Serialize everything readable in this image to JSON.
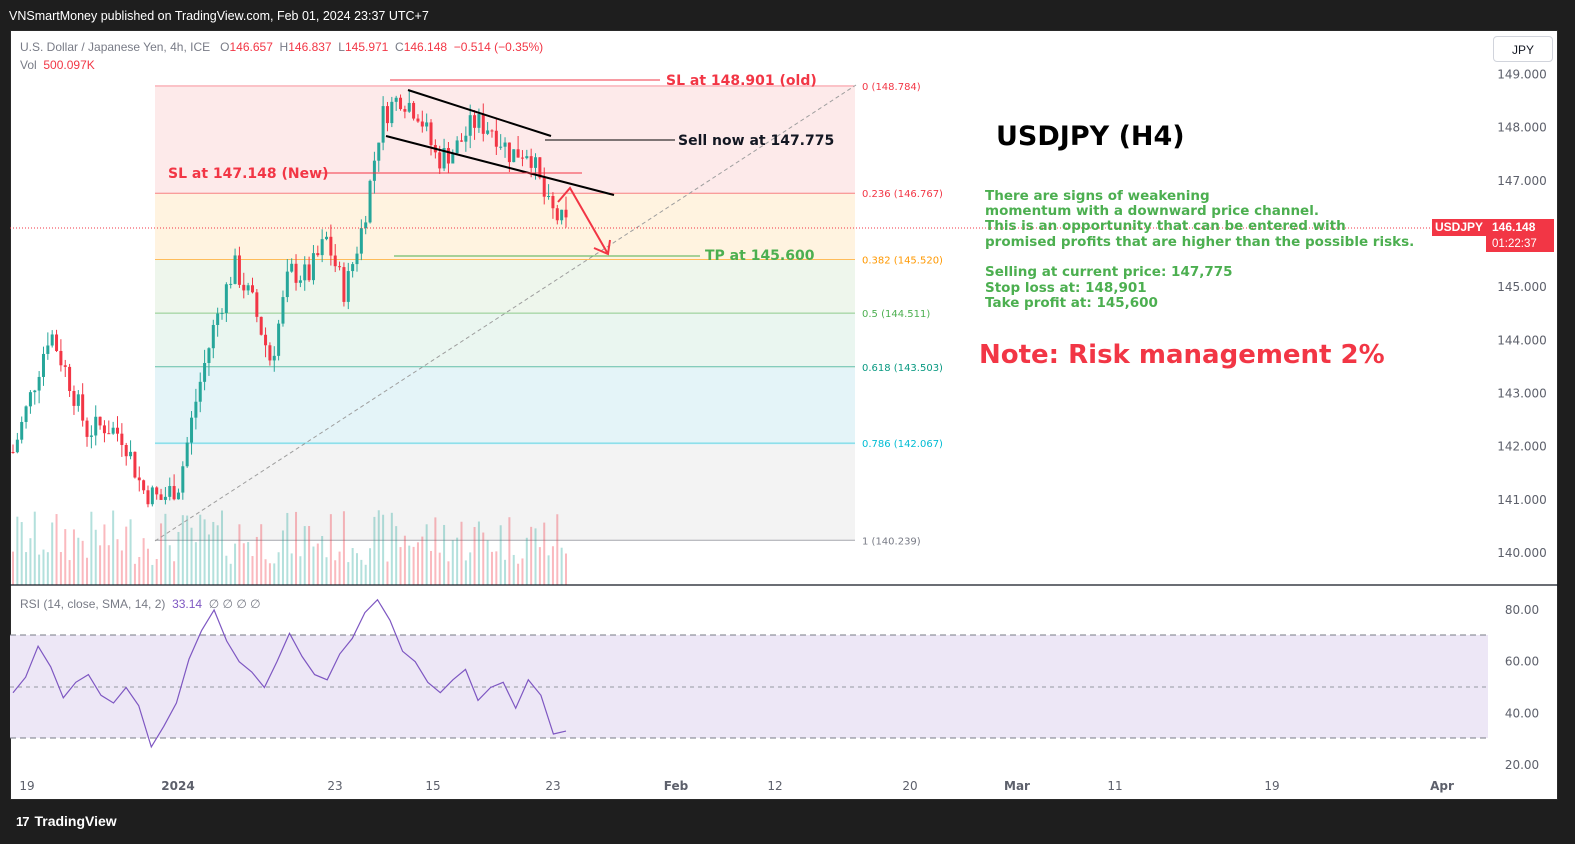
{
  "header": {
    "published_text": "VNSmartMoney published on TradingView.com, Feb 01, 2024 23:37 UTC+7"
  },
  "legend": {
    "symbol_line": "U.S. Dollar / Japanese Yen, 4h, ICE",
    "ohlc": {
      "o_label": "O",
      "o_value": "146.657",
      "h_label": "H",
      "h_value": "146.837",
      "l_label": "L",
      "l_value": "145.971",
      "c_label": "C",
      "c_value": "146.148",
      "change": "−0.514 (−0.35%)"
    },
    "vol_label": "Vol",
    "vol_value": "500.097K"
  },
  "currency_button": "JPY",
  "symbol_badge": {
    "name": "USDJPY",
    "price": "146.148",
    "countdown": "01:22:37"
  },
  "annotations": {
    "title": "USDJPY (H4)",
    "analysis_lines": [
      "There are signs of weakening",
      "momentum with a downward price channel.",
      "This is an opportunity that can be entered with",
      "promised profits that are higher than the possible risks."
    ],
    "trade_lines": [
      "Selling at current price: 147,775",
      "Stop loss at: 148,901",
      "Take profit at: 145,600"
    ],
    "note": "Note: Risk management 2%",
    "sl_old": "SL at 148.901 (old)",
    "sl_new": "SL at 147.148 (New)",
    "sell_now": "Sell now at 147.775",
    "tp": "TP at 145.600"
  },
  "rsi_legend": {
    "label": "RSI (14, close, SMA, 14, 2)",
    "value": "33.14",
    "extras": "∅  ∅  ∅  ∅"
  },
  "footer": {
    "logo_mark": "17",
    "brand": "TradingView"
  },
  "colors": {
    "bull": "#26a69a",
    "bear": "#f23645",
    "rsi_line": "#7e57c2",
    "annotation_green": "#4caf50",
    "annotation_red": "#f23645"
  },
  "chart_data": [
    {
      "type": "candlestick",
      "title": "U.S. Dollar / Japanese Yen, 4h, ICE",
      "timeframe": "4h",
      "price_axis": {
        "ylim": [
          139.6,
          149.2
        ],
        "ticks": [
          "149.000",
          "148.000",
          "147.000",
          "145.000",
          "144.000",
          "143.000",
          "142.000",
          "141.000",
          "140.000"
        ],
        "tick_values": [
          149,
          148,
          147,
          145,
          144,
          143,
          142,
          141,
          140
        ]
      },
      "time_axis": {
        "tick_labels": [
          "19",
          "2024",
          "23",
          "15",
          "23",
          "Feb",
          "12",
          "20",
          "Mar",
          "11",
          "19",
          "Apr",
          "15"
        ]
      },
      "price_path": [
        {
          "t": "Dec 18",
          "p": 141.9
        },
        {
          "t": "Dec 19",
          "p": 143.0
        },
        {
          "t": "Dec 20",
          "p": 144.2
        },
        {
          "t": "Dec 21",
          "p": 143.3
        },
        {
          "t": "Dec 22",
          "p": 142.3
        },
        {
          "t": "Dec 26",
          "p": 142.4
        },
        {
          "t": "Dec 27",
          "p": 142.2
        },
        {
          "t": "Dec 28",
          "p": 141.2
        },
        {
          "t": "Dec 29",
          "p": 141.0
        },
        {
          "t": "Jan 2",
          "p": 141.3
        },
        {
          "t": "Jan 3",
          "p": 143.0
        },
        {
          "t": "Jan 4",
          "p": 144.4
        },
        {
          "t": "Jan 5",
          "p": 145.4
        },
        {
          "t": "Jan 8",
          "p": 144.7
        },
        {
          "t": "Jan 9",
          "p": 143.6
        },
        {
          "t": "Jan 10",
          "p": 145.3
        },
        {
          "t": "Jan 12",
          "p": 145.2
        },
        {
          "t": "Jan 15",
          "p": 145.9
        },
        {
          "t": "Jan 16",
          "p": 144.9
        },
        {
          "t": "Jan 17",
          "p": 146.2
        },
        {
          "t": "Jan 18",
          "p": 148.2
        },
        {
          "t": "Jan 19",
          "p": 148.6
        },
        {
          "t": "Jan 22",
          "p": 148.3
        },
        {
          "t": "Jan 23",
          "p": 147.4
        },
        {
          "t": "Jan 24",
          "p": 147.6
        },
        {
          "t": "Jan 25",
          "p": 148.1
        },
        {
          "t": "Jan 26",
          "p": 148.0
        },
        {
          "t": "Jan 29",
          "p": 147.5
        },
        {
          "t": "Jan 30",
          "p": 147.6
        },
        {
          "t": "Jan 31",
          "p": 146.5
        },
        {
          "t": "Feb 1",
          "p": 146.148
        }
      ],
      "fibonacci": [
        {
          "level": "0",
          "price": 148.784
        },
        {
          "level": "0.236",
          "price": 146.767
        },
        {
          "level": "0.382",
          "price": 145.52
        },
        {
          "level": "0.5",
          "price": 144.511
        },
        {
          "level": "0.618",
          "price": 143.503
        },
        {
          "level": "0.786",
          "price": 142.067
        },
        {
          "level": "1",
          "price": 140.239
        }
      ],
      "levels": {
        "sl_old": 148.901,
        "sl_new": 147.148,
        "sell": 147.775,
        "tp": 145.6,
        "last": 146.148
      }
    },
    {
      "type": "line",
      "title": "RSI (14, close, SMA, 14, 2)",
      "ylim": [
        14,
        86
      ],
      "ticks": [
        "80.00",
        "60.00",
        "40.00",
        "20.00"
      ],
      "tick_values": [
        80,
        60,
        40,
        20
      ],
      "bands": [
        30,
        50,
        70
      ],
      "values": [
        48,
        54,
        66,
        58,
        46,
        52,
        55,
        47,
        44,
        50,
        43,
        27,
        35,
        44,
        61,
        72,
        80,
        68,
        60,
        56,
        50,
        60,
        71,
        62,
        55,
        53,
        63,
        69,
        79,
        84,
        76,
        64,
        60,
        52,
        48,
        53,
        57,
        45,
        50,
        52,
        42,
        53,
        47,
        32,
        33.14
      ]
    }
  ]
}
